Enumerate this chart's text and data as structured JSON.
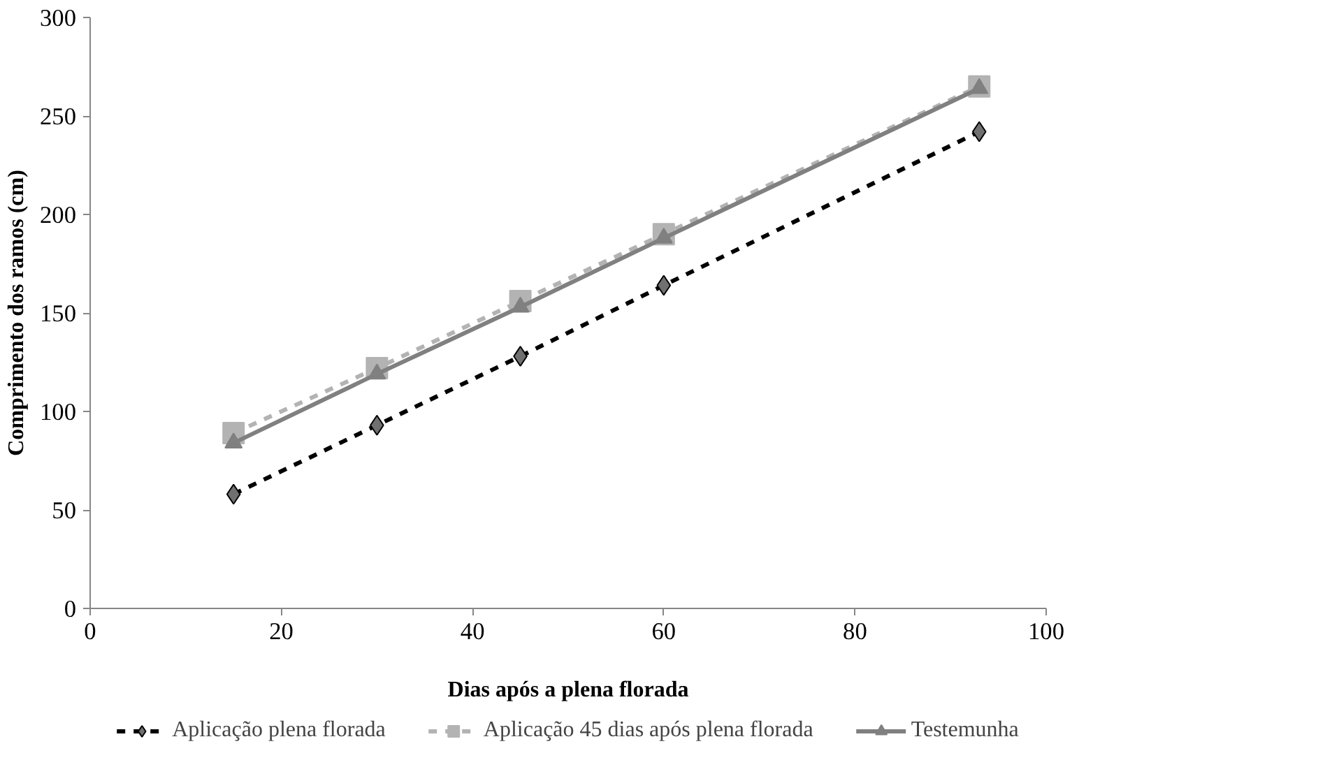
{
  "chart_data": {
    "type": "line",
    "xlabel": "Dias após a plena florada",
    "ylabel": "Comprimento dos ramos (cm)",
    "x": [
      15,
      30,
      45,
      60,
      93
    ],
    "series": [
      {
        "name": "Aplicação plena florada",
        "color": "#000000",
        "values": [
          58,
          93,
          128,
          164,
          242
        ],
        "marker": "diamond",
        "line_style": "dashed"
      },
      {
        "name": "Aplicação 45 dias após plena florada",
        "color": "#b3b3b3",
        "values": [
          89,
          122,
          156,
          190,
          265
        ],
        "marker": "square",
        "line_style": "dashed"
      },
      {
        "name": "Testemunha",
        "color": "#808080",
        "values": [
          84,
          119,
          153,
          188,
          264
        ],
        "marker": "triangle",
        "line_style": "solid"
      }
    ],
    "xlim": [
      0,
      100
    ],
    "xticks": [
      0,
      20,
      40,
      60,
      80,
      100
    ],
    "ylim": [
      0,
      300
    ],
    "yticks": [
      0,
      50,
      100,
      150,
      200,
      250,
      300
    ],
    "grid": false,
    "legend": "bottom"
  }
}
